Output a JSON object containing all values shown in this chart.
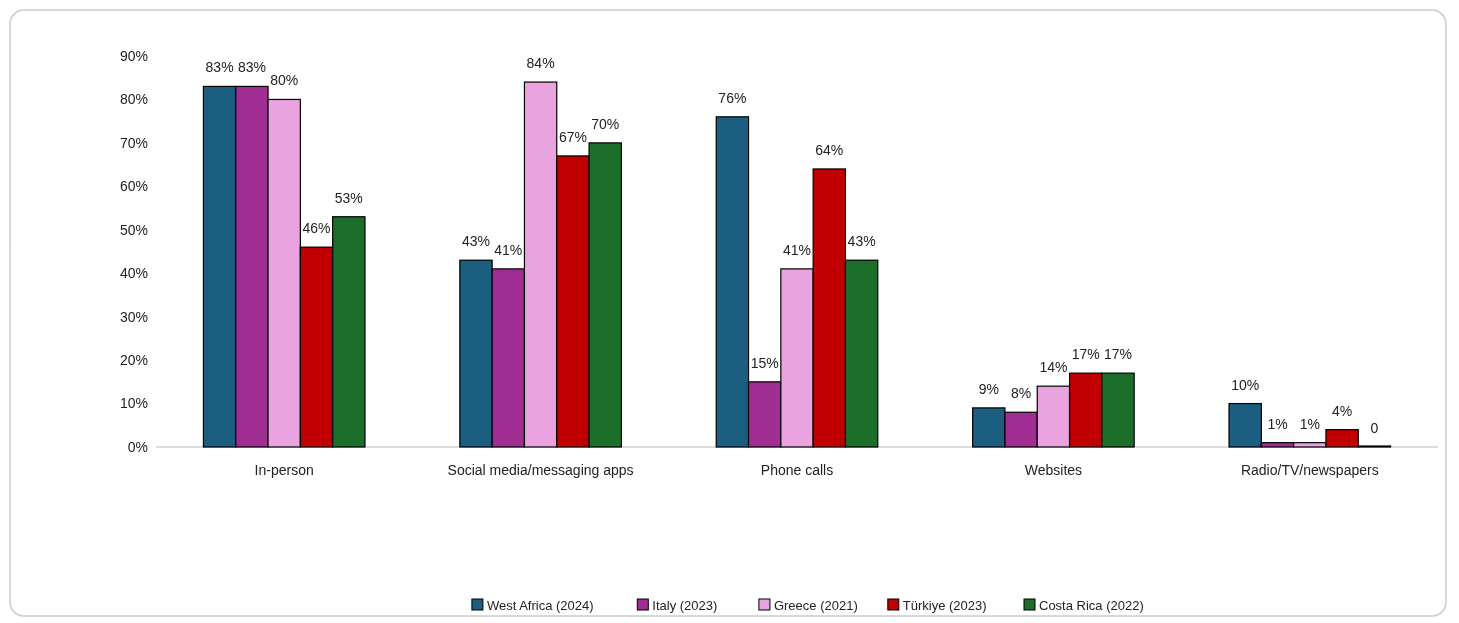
{
  "chart_data": {
    "type": "bar",
    "categories": [
      "In-person",
      "Social media/messaging apps",
      "Phone calls",
      "Websites",
      "Radio/TV/newspapers"
    ],
    "series": [
      {
        "name": "West Africa (2024)",
        "color": "#1b5e7f",
        "values": [
          83,
          43,
          76,
          9,
          10
        ],
        "value_labels": [
          "83%",
          "43%",
          "76%",
          "9%",
          "10%"
        ]
      },
      {
        "name": "Italy (2023)",
        "color": "#a02d92",
        "values": [
          83,
          41,
          15,
          8,
          1
        ],
        "value_labels": [
          "83%",
          "41%",
          "15%",
          "8%",
          "1%"
        ]
      },
      {
        "name": "Greece (2021)",
        "color": "#e9a3df",
        "values": [
          80,
          84,
          41,
          14,
          1
        ],
        "value_labels": [
          "80%",
          "84%",
          "41%",
          "14%",
          "1%"
        ]
      },
      {
        "name": "Türkiye (2023)",
        "color": "#c00000",
        "values": [
          46,
          67,
          64,
          17,
          4
        ],
        "value_labels": [
          "46%",
          "67%",
          "64%",
          "17%",
          "4%"
        ]
      },
      {
        "name": "Costa Rica (2022)",
        "color": "#1e6e2b",
        "values": [
          53,
          70,
          43,
          17,
          0
        ],
        "value_labels": [
          "53%",
          "70%",
          "43%",
          "17%",
          "0"
        ]
      }
    ],
    "ylim": [
      0,
      90
    ],
    "yticks": [
      {
        "value": 0,
        "label": "0%"
      },
      {
        "value": 10,
        "label": "10%"
      },
      {
        "value": 20,
        "label": "20%"
      },
      {
        "value": 30,
        "label": "30%"
      },
      {
        "value": 40,
        "label": "40%"
      },
      {
        "value": 50,
        "label": "50%"
      },
      {
        "value": 60,
        "label": "60%"
      },
      {
        "value": 70,
        "label": "70%"
      },
      {
        "value": 80,
        "label": "80%"
      },
      {
        "value": 90,
        "label": "90%"
      }
    ],
    "grid": false,
    "legend": "bottom"
  }
}
